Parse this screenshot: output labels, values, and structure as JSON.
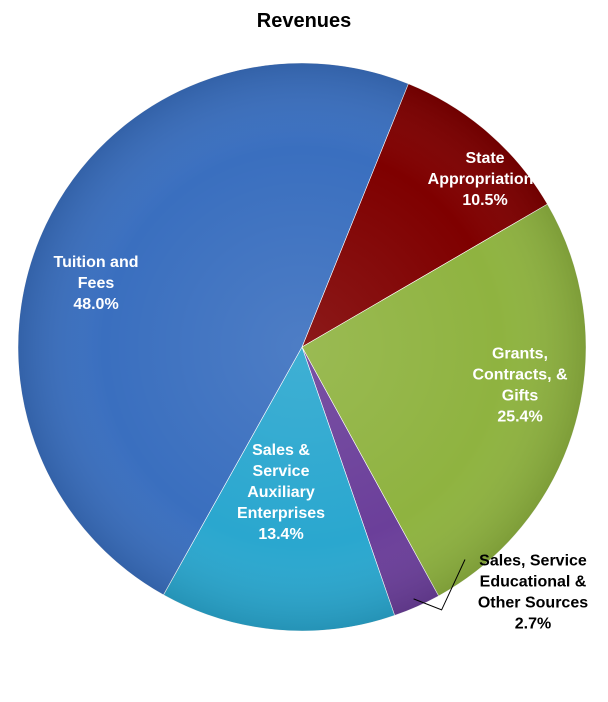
{
  "chart_data": {
    "type": "pie",
    "title": "Revenues",
    "start_angle_deg": 22,
    "direction": "clockwise",
    "slices": [
      {
        "label": [
          "State",
          "Appropriations"
        ],
        "value": 10.5,
        "value_label": "10.5%",
        "color": "#7f0000",
        "label_color": "#ffffff"
      },
      {
        "label": [
          "Grants,",
          "Contracts, &",
          "Gifts"
        ],
        "value": 25.4,
        "value_label": "25.4%",
        "color": "#8fb340",
        "label_color": "#ffffff"
      },
      {
        "label": [
          "Sales, Service",
          "Educational &",
          "Other Sources"
        ],
        "value": 2.7,
        "value_label": "2.7%",
        "color": "#6b3f9a",
        "label_color": "#000000"
      },
      {
        "label": [
          "Sales &",
          "Service",
          "Auxiliary",
          "Enterprises"
        ],
        "value": 13.4,
        "value_label": "13.4%",
        "color": "#2aa7cf",
        "label_color": "#ffffff"
      },
      {
        "label": [
          "Tuition and",
          "Fees"
        ],
        "value": 48.0,
        "value_label": "48.0%",
        "color": "#3a6fbf",
        "label_color": "#ffffff"
      }
    ]
  }
}
